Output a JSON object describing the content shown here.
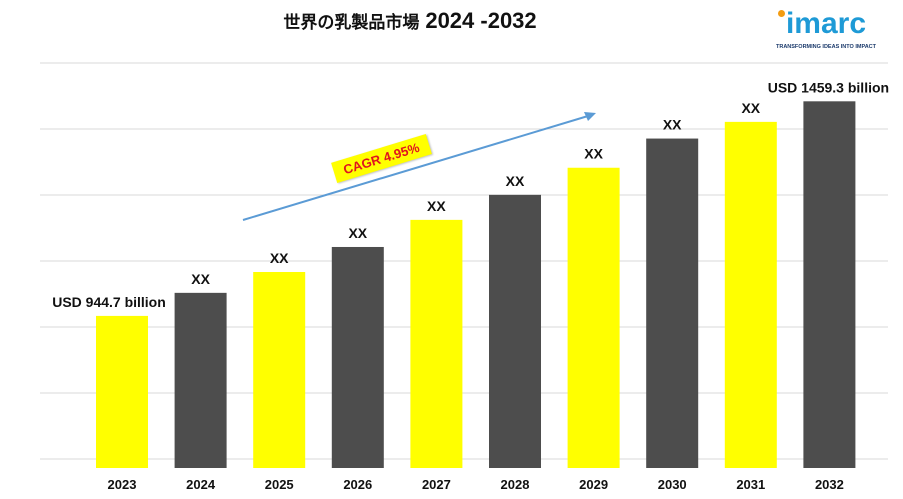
{
  "title": {
    "text": "世界の乳製品市場",
    "years": "2024 -2032"
  },
  "logo": {
    "word": "imarc",
    "tagline": "TRANSFORMING IDEAS INTO IMPACT"
  },
  "cagr": {
    "label": "CAGR 4.95%"
  },
  "colors": {
    "yellow": "#ffff00",
    "dark": "#4d4d4d",
    "arrow": "#5b9bd5",
    "cagr_text": "#e0141e",
    "logo": "#1e9ad6"
  },
  "chart_data": {
    "type": "bar",
    "title": "世界の乳製品市場 2024 -2032",
    "categories": [
      "2023",
      "2024",
      "2025",
      "2026",
      "2027",
      "2028",
      "2029",
      "2030",
      "2031",
      "2032"
    ],
    "values": [
      944.7,
      1000,
      1050,
      1110,
      1175,
      1235,
      1300,
      1370,
      1410,
      1459.3
    ],
    "data_labels": [
      "USD 944.7 billion",
      "XX",
      "XX",
      "XX",
      "XX",
      "XX",
      "XX",
      "XX",
      "XX",
      "USD 1459.3 billion"
    ],
    "bar_colors": [
      "#ffff00",
      "#4d4d4d",
      "#ffff00",
      "#4d4d4d",
      "#ffff00",
      "#4d4d4d",
      "#ffff00",
      "#4d4d4d",
      "#ffff00",
      "#4d4d4d"
    ],
    "ylim": [
      580,
      1520
    ],
    "grid": true,
    "xlabel": "",
    "ylabel": ""
  }
}
